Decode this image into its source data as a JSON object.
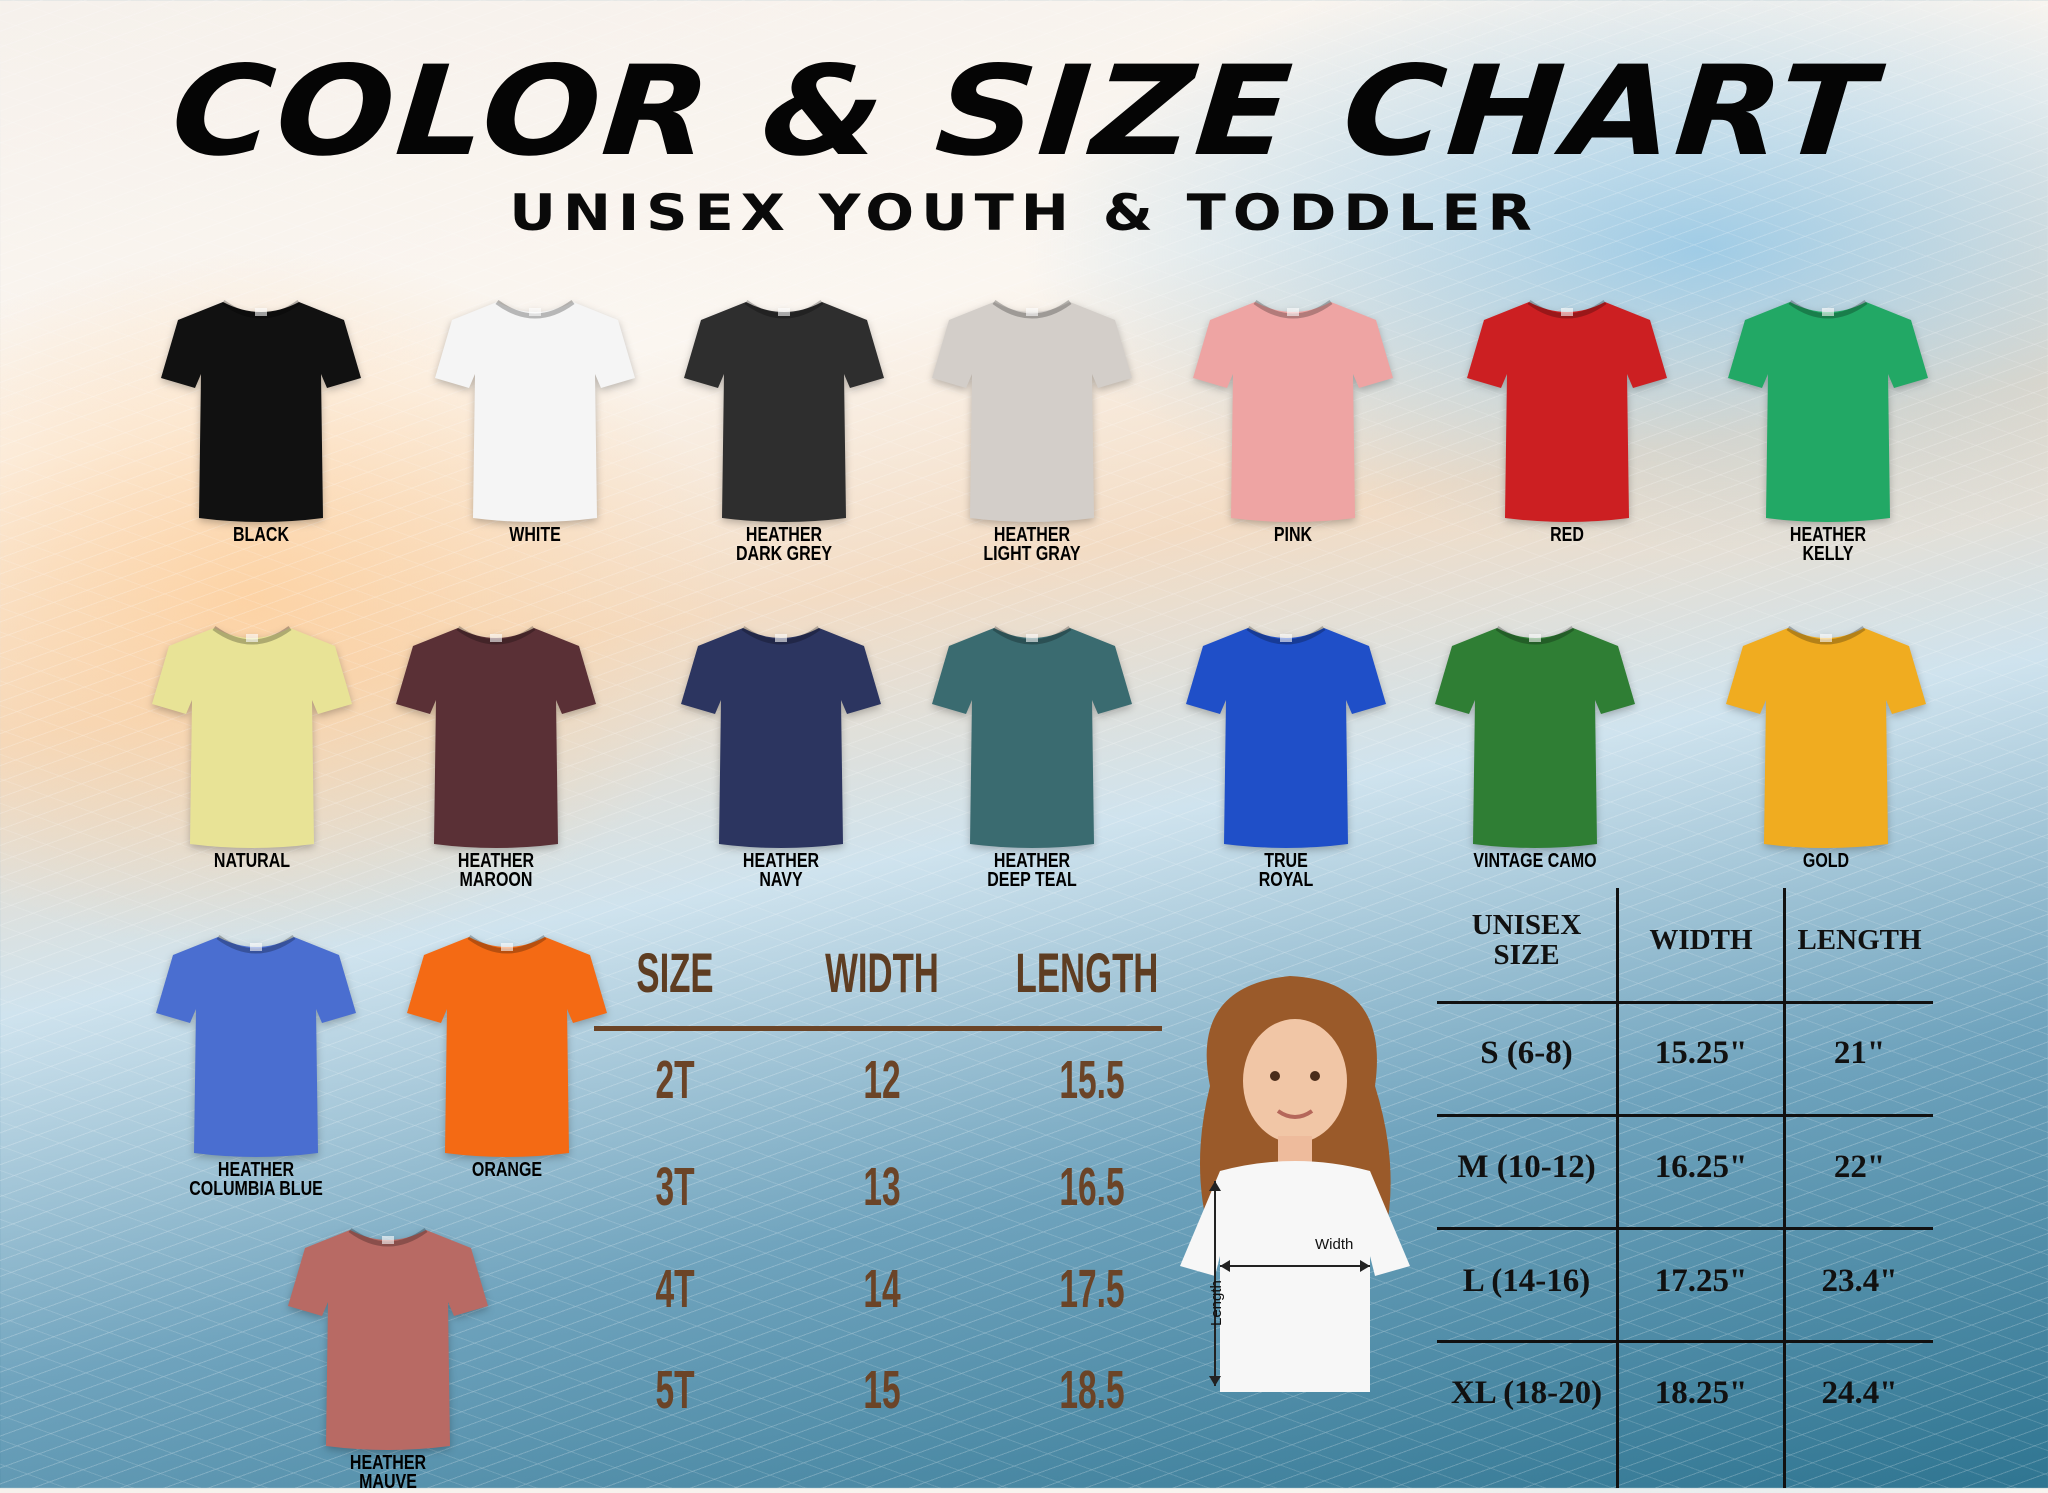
{
  "title": "COLOR & SIZE CHART",
  "subtitle": "UNISEX YOUTH & TODDLER",
  "colors": [
    {
      "label": "BLACK",
      "hex": "#111111"
    },
    {
      "label": "WHITE",
      "hex": "#f5f5f5"
    },
    {
      "label": "HEATHER\nDARK GREY",
      "hex": "#2e2e2e"
    },
    {
      "label": "HEATHER\nLIGHT GRAY",
      "hex": "#d3cec9"
    },
    {
      "label": "PINK",
      "hex": "#eea4a3"
    },
    {
      "label": "RED",
      "hex": "#cc1f22"
    },
    {
      "label": "HEATHER\nKELLY",
      "hex": "#22a865"
    },
    {
      "label": "NATURAL",
      "hex": "#e8e396"
    },
    {
      "label": "HEATHER\nMAROON",
      "hex": "#5a3036"
    },
    {
      "label": "HEATHER\nNAVY",
      "hex": "#2c3560"
    },
    {
      "label": "HEATHER\nDEEP TEAL",
      "hex": "#3a6b70"
    },
    {
      "label": "TRUE\nROYAL",
      "hex": "#1f4fc8"
    },
    {
      "label": "VINTAGE CAMO",
      "hex": "#2f7e34"
    },
    {
      "label": "GOLD",
      "hex": "#f0ac20"
    },
    {
      "label": "HEATHER\nCOLUMBIA BLUE",
      "hex": "#4a6ed0"
    },
    {
      "label": "ORANGE",
      "hex": "#f46a14"
    },
    {
      "label": "HEATHER\nMAUVE",
      "hex": "#b86a64"
    }
  ],
  "toddler_table": {
    "headers": [
      "SIZE",
      "WIDTH",
      "LENGTH"
    ],
    "rows": [
      [
        "2T",
        "12",
        "15.5"
      ],
      [
        "3T",
        "13",
        "16.5"
      ],
      [
        "4T",
        "14",
        "17.5"
      ],
      [
        "5T",
        "15",
        "18.5"
      ]
    ]
  },
  "model": {
    "width_label": "Width",
    "length_label": "Length"
  },
  "youth_table": {
    "headers": [
      "UNISEX\nSIZE",
      "WIDTH",
      "LENGTH"
    ],
    "rows": [
      [
        "S (6-8)",
        "15.25\"",
        "21\""
      ],
      [
        "M (10-12)",
        "16.25\"",
        "22\""
      ],
      [
        "L (14-16)",
        "17.25\"",
        "23.4\""
      ],
      [
        "XL (18-20)",
        "18.25\"",
        "24.4\""
      ]
    ]
  }
}
